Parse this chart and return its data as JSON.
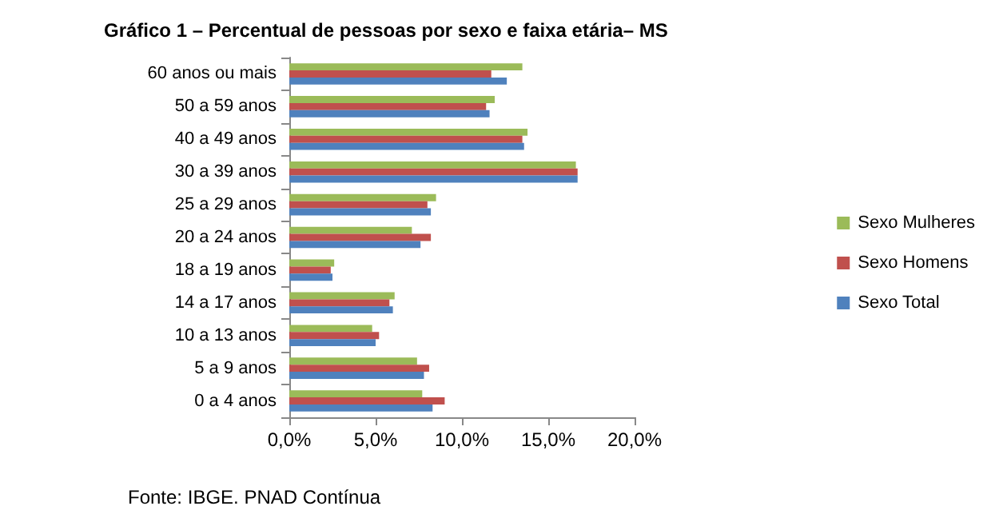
{
  "chart_data": {
    "type": "bar",
    "orientation": "horizontal",
    "title": "Gráfico 1 – Percentual de pessoas por sexo e faixa etária– MS",
    "categories": [
      "60 anos ou mais",
      "50 a 59 anos",
      "40 a 49 anos",
      "30 a 39 anos",
      "25 a 29 anos",
      "20 a 24 anos",
      "18 a 19 anos",
      "14 a 17 anos",
      "10 a 13 anos",
      "5 a 9 anos",
      "0 a 4 anos"
    ],
    "series": [
      {
        "name": "Sexo Mulheres",
        "color": "#9bbb59",
        "values": [
          13.5,
          11.9,
          13.8,
          16.6,
          8.5,
          7.1,
          2.6,
          6.1,
          4.8,
          7.4,
          7.7
        ]
      },
      {
        "name": "Sexo Homens",
        "color": "#c0504d",
        "values": [
          11.7,
          11.4,
          13.5,
          16.7,
          8.0,
          8.2,
          2.4,
          5.8,
          5.2,
          8.1,
          9.0
        ]
      },
      {
        "name": "Sexo Total",
        "color": "#4f81bd",
        "values": [
          12.6,
          11.6,
          13.6,
          16.7,
          8.2,
          7.6,
          2.5,
          6.0,
          5.0,
          7.8,
          8.3
        ]
      }
    ],
    "xlim": [
      0,
      20
    ],
    "xticks": [
      {
        "value": 0,
        "label": "0,0%"
      },
      {
        "value": 5,
        "label": "5,0%"
      },
      {
        "value": 10,
        "label": "10,0%"
      },
      {
        "value": 15,
        "label": "15,0%"
      },
      {
        "value": 20,
        "label": "20,0%"
      }
    ],
    "grid": false,
    "legend": "right",
    "annotations": [
      "Fonte: IBGE. PNAD Contínua"
    ]
  }
}
